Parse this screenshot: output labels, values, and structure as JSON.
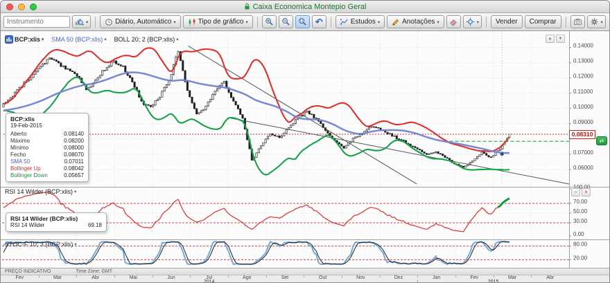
{
  "window": {
    "title": "Caixa Economica Montepio Geral"
  },
  "toolbar": {
    "instrument_placeholder": "Instrumento",
    "period_label": "Diário, Automático",
    "chart_type_label": "Tipo de gráfico",
    "studies_label": "Estudos",
    "annotations_label": "Anotações",
    "sell_label": "Vender",
    "buy_label": "Comprar"
  },
  "legend": {
    "instrument": "BCP:xlis",
    "sma": "SMA 50 (BCP:xlis)",
    "boll": "BOLL 20; 2 (BCP:xlis)",
    "rsi": "RSI 14 Wilder (BCP:xlis)",
    "stoch": "STOC-F 10; 3 (BCP:xlis)"
  },
  "tooltip": {
    "title": "BCP:xlis",
    "date": "19-Feb-2015",
    "rows": [
      {
        "label": "Aberto",
        "value": "0.08140",
        "color": "#333333"
      },
      {
        "label": "Máximo",
        "value": "0.08200",
        "color": "#333333"
      },
      {
        "label": "Mínimo",
        "value": "0.08000",
        "color": "#333333"
      },
      {
        "label": "Fecho",
        "value": "0.08070",
        "color": "#333333"
      },
      {
        "label": "SMA 50",
        "value": "0.07011",
        "color": "#4a63c8"
      },
      {
        "label": "Bollinger Up",
        "value": "0.08042",
        "color": "#d82c2c"
      },
      {
        "label": "Bollinger Down",
        "value": "0.05657",
        "color": "#15963f"
      }
    ]
  },
  "rsi_tooltip": {
    "title": "RSI 14 Wilder (BCP:xlis)",
    "label": "RSI 14 Wilder",
    "value": "69.18"
  },
  "price_tag": "0.08310",
  "status": {
    "left": "PREÇO INDICATIVO",
    "right": "Time Zone: GMT"
  },
  "chart_data": {
    "type": "candlestick",
    "title": "BCP:xlis daily candles with SMA 50 and Bollinger 20;2, RSI 14 Wilder, STOC-F 10;3",
    "months": [
      "Fev",
      "Mar",
      "Abr",
      "Mai",
      "Jun",
      "Jul",
      "Ago",
      "Set",
      "Out",
      "Nov",
      "Dez",
      "Jan",
      "Fev",
      "Mar",
      "Abr"
    ],
    "years": [
      {
        "label": "2014",
        "from": 0,
        "to": 10
      },
      {
        "label": "2015",
        "from": 11,
        "to": 14
      }
    ],
    "price_ticks": [
      0.14,
      0.13,
      0.12,
      0.11,
      0.1,
      0.09,
      0.08,
      0.07,
      0.06
    ],
    "price_range": [
      0.05,
      0.148
    ],
    "last_price": 0.0831,
    "current_price_line": 0.0831,
    "order_line": {
      "price": 0.0785,
      "x_start_frac": 0.78
    },
    "anchor_closes": [
      0.103,
      0.108,
      0.115,
      0.121,
      0.127,
      0.133,
      0.129,
      0.125,
      0.122,
      0.113,
      0.118,
      0.126,
      0.131,
      0.127,
      0.118,
      0.104,
      0.101,
      0.108,
      0.118,
      0.138,
      0.112,
      0.096,
      0.101,
      0.112,
      0.117,
      0.105,
      0.094,
      0.066,
      0.076,
      0.083,
      0.081,
      0.087,
      0.094,
      0.098,
      0.093,
      0.086,
      0.079,
      0.074,
      0.08,
      0.084,
      0.088,
      0.086,
      0.083,
      0.08,
      0.077,
      0.073,
      0.07,
      0.072,
      0.068,
      0.064,
      0.061,
      0.066,
      0.071,
      0.068,
      0.074,
      0.0831
    ],
    "candles_per_anchor": 4,
    "warmup_candles": 50,
    "seed": 13,
    "data_end_frac": 0.895,
    "trendlines": [
      {
        "x1": 0.33,
        "p1": 0.141,
        "x2": 0.732,
        "p2": 0.0505
      },
      {
        "x1": 0.4,
        "p1": 0.094,
        "x2": 1.0,
        "p2": 0.0505
      }
    ],
    "hover": {
      "x_frac": 0.882,
      "sma_price": 0.07011
    },
    "sma_period": 50,
    "bollinger": {
      "period": 20,
      "mult": 2
    },
    "rsi": {
      "period": 14,
      "ticks": [
        100,
        70,
        50,
        30,
        0
      ],
      "guides": [
        70,
        30
      ],
      "last": 69.18
    },
    "stoch": {
      "k_period": 10,
      "d_period": 3,
      "ticks": [
        80,
        20
      ],
      "guides": [
        80,
        20
      ]
    },
    "colors": {
      "candle": "#1f1f1f",
      "candle_up_fill": "#e8e8e8",
      "last": "#0a9e3c",
      "boll_up": "#e03030",
      "boll_dn": "#17a24a",
      "sma": "#7282cf",
      "rsi": "#e03030",
      "stoch_k": "#74a9d8",
      "stoch_d": "#1f1f1f",
      "guide": "#cc4444",
      "price_line": "#e02222",
      "order_line": "#17a24a",
      "trend": "#555555",
      "grid": "#e0e0e0"
    }
  }
}
